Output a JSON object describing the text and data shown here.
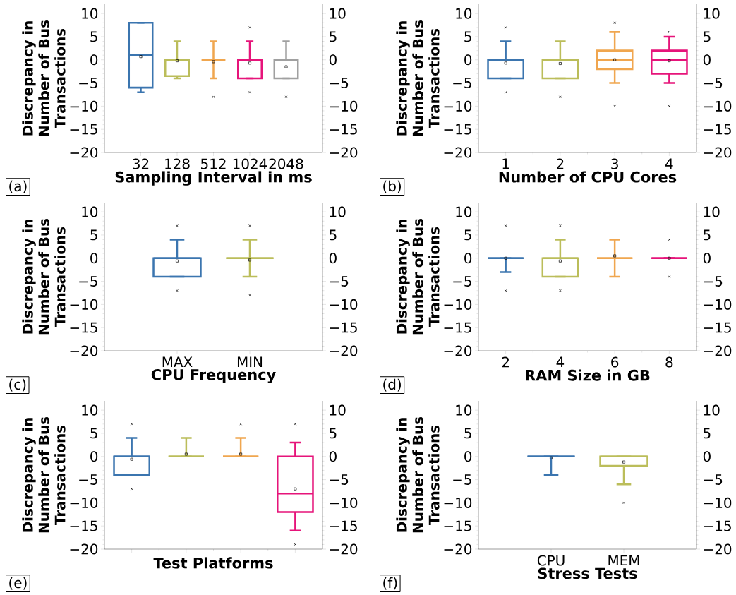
{
  "chart_data": [
    {
      "type": "box",
      "xlabel": "Sampling Interval in ms",
      "ylabel": "Discrepancy in Number of Bus Transactions",
      "categories": [
        "32",
        "128",
        "512",
        "1024",
        "2048"
      ],
      "colors": [
        "#3b75af",
        "#bbbd5a",
        "#f0a64f",
        "#e6147a",
        "#a0a0a0"
      ],
      "boxes": [
        {
          "low": -7,
          "q1": -6,
          "median": 1,
          "q3": 8,
          "high": 8,
          "mean": 0.7
        },
        {
          "low": -4,
          "q1": -3.5,
          "median": 0,
          "q3": 0,
          "high": 4,
          "mean": -0.2
        },
        {
          "low": -4,
          "q1": 0,
          "median": 0,
          "q3": 0,
          "high": 4,
          "mean": -0.4,
          "outliers": [
            -8
          ]
        },
        {
          "low": -4,
          "q1": -4,
          "median": 0,
          "q3": 0,
          "high": 4,
          "mean": -0.7,
          "outliers": [
            7,
            -7
          ]
        },
        {
          "low": -4,
          "q1": -4,
          "median": 0,
          "q3": 0,
          "high": 4,
          "mean": -1.5,
          "outliers": [
            -8
          ]
        }
      ],
      "ylim": [
        -20,
        12
      ],
      "yticks": [
        {
          "value": -20,
          "label": "−20"
        },
        {
          "value": -15,
          "label": "−15"
        },
        {
          "value": -10,
          "label": "−10"
        },
        {
          "value": -5,
          "label": "−5"
        },
        0,
        5,
        10
      ],
      "y2lim": [
        -20,
        12
      ],
      "y2ticks": [
        {
          "value": -20,
          "label": "−20"
        },
        {
          "value": -15,
          "label": "−15"
        },
        {
          "value": -10,
          "label": "−10"
        },
        {
          "value": -5,
          "label": "−5"
        },
        0,
        5,
        10
      ],
      "annotations": [
        "(a)"
      ]
    },
    {
      "type": "box",
      "xlabel": "Number of CPU Cores",
      "ylabel": "Discrepancy in Number of Bus Transactions",
      "categories": [
        "1",
        "2",
        "3",
        "4"
      ],
      "colors": [
        "#3b75af",
        "#bbbd5a",
        "#f0a64f",
        "#e6147a"
      ],
      "boxes": [
        {
          "low": -4,
          "q1": -4,
          "median": 0,
          "q3": 0,
          "high": 4,
          "mean": -0.7,
          "outliers": [
            7,
            -7
          ]
        },
        {
          "low": -4,
          "q1": -4,
          "median": 0,
          "q3": 0,
          "high": 4,
          "mean": -0.8,
          "outliers": [
            -8
          ]
        },
        {
          "low": -5,
          "q1": -2,
          "median": 0,
          "q3": 2,
          "high": 6,
          "mean": 0,
          "outliers": [
            8,
            -10
          ]
        },
        {
          "low": -5,
          "q1": -3,
          "median": 0,
          "q3": 2,
          "high": 5,
          "mean": -0.2,
          "outliers": [
            6,
            -10
          ]
        }
      ],
      "ylim": [
        -20,
        12
      ],
      "yticks": [
        {
          "value": -20,
          "label": "−20"
        },
        {
          "value": -15,
          "label": "−15"
        },
        {
          "value": -10,
          "label": "−10"
        },
        {
          "value": -5,
          "label": "−5"
        },
        0,
        5,
        10
      ],
      "y2lim": [
        -20,
        12
      ],
      "y2ticks": [
        {
          "value": -20,
          "label": "−20"
        },
        {
          "value": -15,
          "label": "−15"
        },
        {
          "value": -10,
          "label": "−10"
        },
        {
          "value": -5,
          "label": "−5"
        },
        0,
        5,
        10
      ],
      "annotations": [
        "(b)"
      ]
    },
    {
      "type": "box",
      "xlabel": "CPU Frequency",
      "ylabel": "Discrepancy in Number of Bus Transactions",
      "categories": [
        "MAX",
        "MIN"
      ],
      "colors": [
        "#3b75af",
        "#bbbd5a"
      ],
      "boxes": [
        {
          "low": -4,
          "q1": -4,
          "median": 0,
          "q3": 0,
          "high": 4,
          "mean": -0.6,
          "outliers": [
            7,
            -7
          ]
        },
        {
          "low": -4,
          "q1": 0,
          "median": 0,
          "q3": 0,
          "high": 4,
          "mean": -0.4,
          "outliers": [
            7,
            -8
          ]
        }
      ],
      "ylim": [
        -20,
        12
      ],
      "yticks": [
        {
          "value": -20,
          "label": "−20"
        },
        {
          "value": -15,
          "label": "−15"
        },
        {
          "value": -10,
          "label": "−10"
        },
        {
          "value": -5,
          "label": "−5"
        },
        0,
        5,
        10
      ],
      "y2lim": [
        -20,
        12
      ],
      "y2ticks": [
        {
          "value": -20,
          "label": "−20"
        },
        {
          "value": -15,
          "label": "−15"
        },
        {
          "value": -10,
          "label": "−10"
        },
        {
          "value": -5,
          "label": "−5"
        },
        0,
        5,
        10
      ],
      "annotations": [
        "(c)"
      ]
    },
    {
      "type": "box",
      "xlabel": "RAM Size in GB",
      "ylabel": "Discrepancy in Number of Bus Transactions",
      "categories": [
        "2",
        "4",
        "6",
        "8"
      ],
      "colors": [
        "#3b75af",
        "#bbbd5a",
        "#f0a64f",
        "#e6147a"
      ],
      "boxes": [
        {
          "low": -3,
          "q1": 0,
          "median": 0,
          "q3": 0,
          "high": 0,
          "mean": 0,
          "outliers": [
            7,
            -7
          ]
        },
        {
          "low": -4,
          "q1": -4,
          "median": 0,
          "q3": 0,
          "high": 4,
          "mean": -0.6,
          "outliers": [
            7,
            -7
          ]
        },
        {
          "low": -4,
          "q1": 0,
          "median": 0,
          "q3": 0,
          "high": 4,
          "mean": 0.5
        },
        {
          "low": 0,
          "q1": 0,
          "median": 0,
          "q3": 0,
          "high": 0,
          "mean": 0,
          "outliers": [
            4,
            -4
          ]
        }
      ],
      "ylim": [
        -20,
        12
      ],
      "yticks": [
        {
          "value": -20,
          "label": "−20"
        },
        {
          "value": -15,
          "label": "−15"
        },
        {
          "value": -10,
          "label": "−10"
        },
        {
          "value": -5,
          "label": "−5"
        },
        0,
        5,
        10
      ],
      "y2lim": [
        -20,
        12
      ],
      "y2ticks": [
        {
          "value": -20,
          "label": "−20"
        },
        {
          "value": -15,
          "label": "−15"
        },
        {
          "value": -10,
          "label": "−10"
        },
        {
          "value": -5,
          "label": "−5"
        },
        0,
        5,
        10
      ],
      "annotations": [
        "(d)"
      ]
    },
    {
      "type": "box",
      "xlabel": "Test Platforms",
      "ylabel": "Discrepancy in Number of Bus Transactions",
      "categories": [
        null,
        null,
        null,
        null
      ],
      "colors": [
        "#3b75af",
        "#bbbd5a",
        "#f0a64f",
        "#e6147a"
      ],
      "boxes": [
        {
          "low": -4,
          "q1": -4,
          "median": 0,
          "q3": 0,
          "high": 4,
          "mean": -0.6,
          "outliers": [
            7,
            -7
          ]
        },
        {
          "low": 0,
          "q1": 0,
          "median": 0,
          "q3": 0,
          "high": 4,
          "mean": 0.5
        },
        {
          "low": 0,
          "q1": 0,
          "median": 0,
          "q3": 0,
          "high": 4,
          "mean": 0.5,
          "outliers": [
            7
          ]
        },
        {
          "low": -16,
          "q1": -12,
          "median": -8,
          "q3": 0,
          "high": 3,
          "mean": -7,
          "outliers": [
            7,
            -19
          ]
        }
      ],
      "ylim": [
        -20,
        12
      ],
      "yticks": [
        {
          "value": -20,
          "label": "−20"
        },
        {
          "value": -15,
          "label": "−15"
        },
        {
          "value": -10,
          "label": "−10"
        },
        {
          "value": -5,
          "label": "−5"
        },
        0,
        5,
        10
      ],
      "y2lim": [
        -20,
        12
      ],
      "y2ticks": [
        {
          "value": -20,
          "label": "−20"
        },
        {
          "value": -15,
          "label": "−15"
        },
        {
          "value": -10,
          "label": "−10"
        },
        {
          "value": -5,
          "label": "−5"
        },
        0,
        5,
        10
      ],
      "annotations": [
        "(e)"
      ]
    },
    {
      "type": "box",
      "xlabel": "Stress Tests",
      "ylabel": "Discrepancy in Number of Bus Transactions",
      "categories": [
        "CPU",
        "MEM"
      ],
      "colors": [
        "#3b75af",
        "#bbbd5a"
      ],
      "boxes": [
        {
          "low": -4,
          "q1": 0,
          "median": 0,
          "q3": 0,
          "high": 0,
          "mean": -0.3
        },
        {
          "low": -6,
          "q1": -2,
          "median": 0,
          "q3": 0,
          "high": 0,
          "mean": -1.2,
          "outliers": [
            -10
          ]
        }
      ],
      "ylim": [
        -20,
        12
      ],
      "yticks": [
        {
          "value": -20,
          "label": "−20"
        },
        {
          "value": -15,
          "label": "−15"
        },
        {
          "value": -10,
          "label": "−10"
        },
        {
          "value": -5,
          "label": "−5"
        },
        0,
        5,
        10
      ],
      "y2lim": [
        -20,
        12
      ],
      "y2ticks": [
        {
          "value": -20,
          "label": "−20"
        },
        {
          "value": -15,
          "label": "−15"
        },
        {
          "value": -10,
          "label": "−10"
        },
        {
          "value": -5,
          "label": "−5"
        },
        0,
        5,
        10
      ],
      "annotations": [
        "(f)"
      ]
    }
  ]
}
